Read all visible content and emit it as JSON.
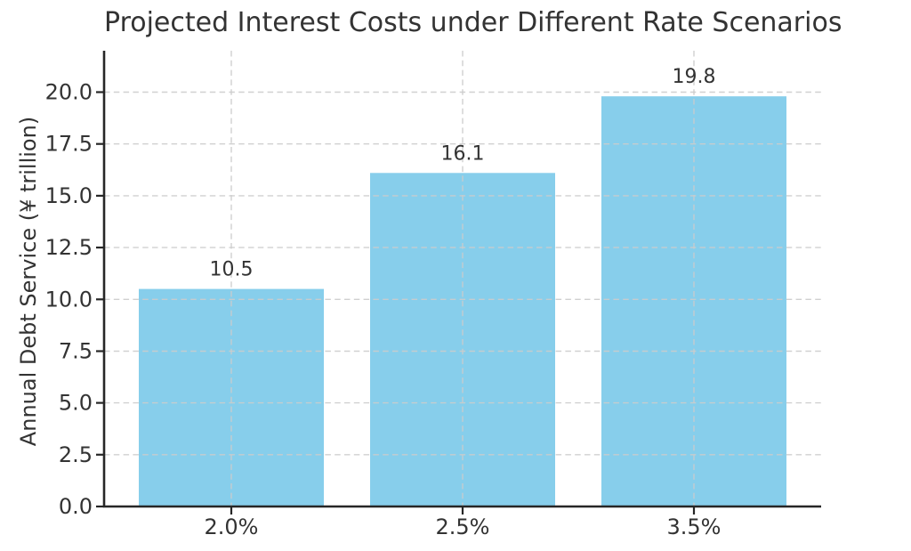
{
  "chart_data": {
    "type": "bar",
    "title": "Projected Interest Costs under Different Rate Scenarios",
    "xlabel": "",
    "ylabel": "Annual Debt Service (¥ trillion)",
    "categories": [
      "2.0%",
      "2.5%",
      "3.5%"
    ],
    "values": [
      10.5,
      16.1,
      19.8
    ],
    "value_labels": [
      "10.5",
      "16.1",
      "19.8"
    ],
    "yticks": [
      0.0,
      2.5,
      5.0,
      7.5,
      10.0,
      12.5,
      15.0,
      17.5,
      20.0
    ],
    "ytick_labels": [
      "0.0",
      "2.5",
      "5.0",
      "7.5",
      "10.0",
      "12.5",
      "15.0",
      "17.5",
      "20.0"
    ],
    "ylim": [
      0,
      22
    ],
    "grid": "dashed, horizontal and vertical, drawn above bars",
    "legend": "none",
    "colors": {
      "bar": "#87ceeb",
      "grid": "#cccccc",
      "spine": "#262626",
      "text": "#333333"
    }
  }
}
